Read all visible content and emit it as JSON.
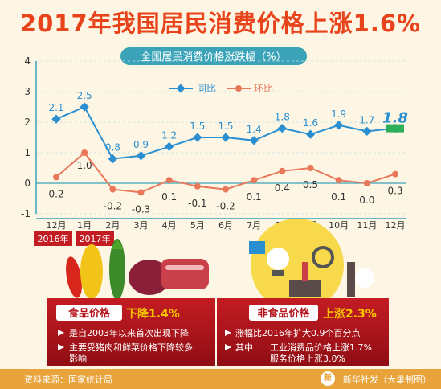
{
  "title": "2017年我国居民消费价格上涨1.6%",
  "chart_data": {
    "type": "line",
    "title": "全国居民消费价格涨跌幅（%）",
    "categories": [
      "12月",
      "1月",
      "2月",
      "3月",
      "4月",
      "5月",
      "6月",
      "7月",
      "8月",
      "9月",
      "10月",
      "11月",
      "12月"
    ],
    "year_labels": [
      "2016年",
      "2017年"
    ],
    "series": [
      {
        "name": "同比",
        "color": "#2a8fd0",
        "values": [
          2.1,
          2.5,
          0.8,
          0.9,
          1.2,
          1.5,
          1.5,
          1.4,
          1.8,
          1.6,
          1.9,
          1.7,
          1.8
        ]
      },
      {
        "name": "环比",
        "color": "#e9785a",
        "values": [
          0.2,
          1.0,
          -0.2,
          -0.3,
          0.1,
          -0.1,
          -0.2,
          0.1,
          0.4,
          0.5,
          0.1,
          0.0,
          0.3
        ]
      }
    ],
    "ylim": [
      -1,
      4
    ],
    "yticks": [
      "-1",
      "0",
      "1",
      "2",
      "3",
      "4"
    ],
    "grid": true,
    "legend": "top-center"
  },
  "food": {
    "label": "食品价格",
    "change": "下降1.4%",
    "bullets": [
      "是自2003年以来首次出现下降",
      [
        "主要受猪肉和鲜菜价格下降较多",
        "影响"
      ]
    ]
  },
  "nonfood": {
    "label": "非食品价格",
    "change": "上涨2.3%",
    "bullet1": "涨幅比2016年扩大0.9个百分点",
    "bullet2_prefix": "其中",
    "bullet2_lines": [
      "工业消费品价格上涨1.7%",
      "服务价格上涨3.0%"
    ]
  },
  "footer": {
    "source": "资料来源：国家统计局",
    "credit": "新华社发（大巢制图）",
    "logo_char": "新"
  },
  "colors": {
    "accent_red": "#e8431a",
    "panel_red": "#b5121b",
    "highlight_yellow": "#f6c600",
    "footer_orange": "#e8a33a",
    "axis_teal": "#3aa3b8",
    "last_badge": "#2fae5a"
  }
}
